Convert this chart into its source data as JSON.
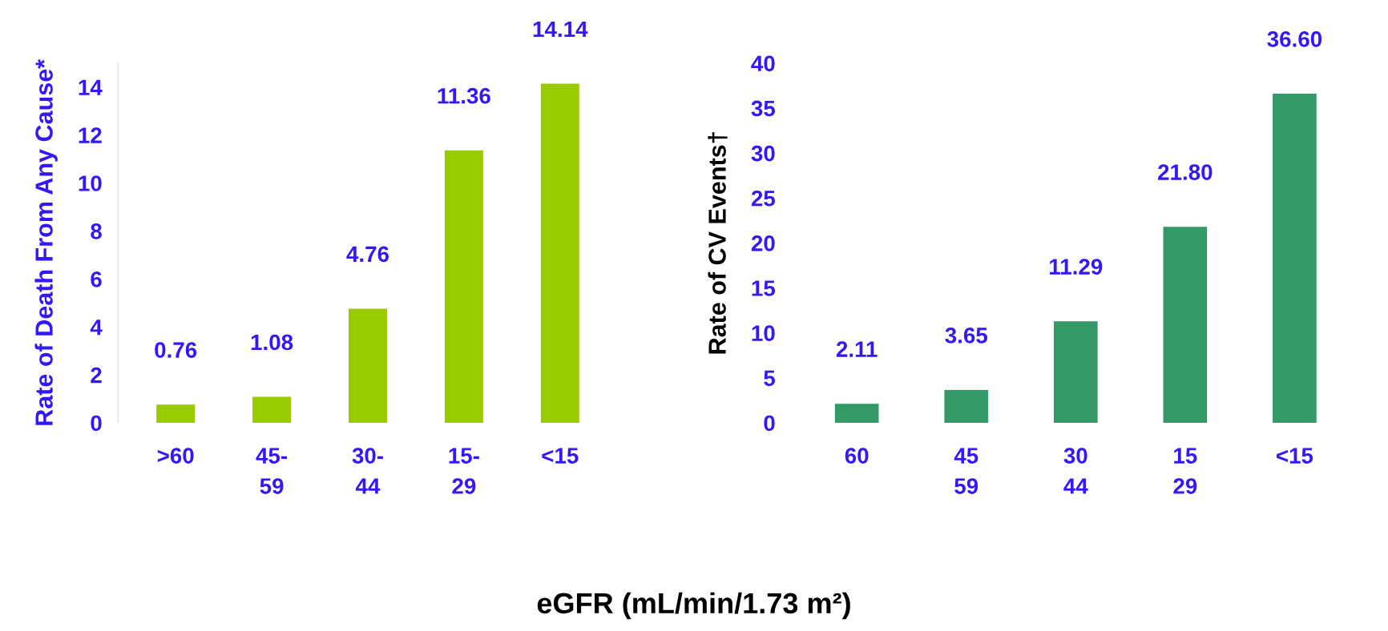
{
  "chart_data": [
    {
      "type": "bar",
      "xlabel": "eGFR (mL/min/1.73 m²)",
      "ylabel": "Rate of Death From Any Cause*",
      "categories": [
        ">60",
        "45-\n59",
        "30-\n44",
        "15-\n29",
        "<15"
      ],
      "series": [
        {
          "color": "#99cc00",
          "values": [
            0.76,
            1.08,
            4.76,
            11.36,
            14.14
          ]
        }
      ],
      "ylim": [
        0,
        15
      ],
      "yticks": [
        0,
        2,
        4,
        6,
        8,
        10,
        12,
        14
      ],
      "data_labels": true,
      "grid": false,
      "legend": false
    },
    {
      "type": "bar",
      "ylabel": "Rate of CV Events†",
      "categories": [
        "60",
        "45\n59",
        "30\n44",
        "15\n29",
        "<15"
      ],
      "series": [
        {
          "color": "#339966",
          "values": [
            2.11,
            3.65,
            11.29,
            21.8,
            36.6
          ]
        }
      ],
      "value_labels": [
        "2.11",
        "3.65",
        "11.29",
        "21.80",
        "36.60"
      ],
      "ylim": [
        0,
        40
      ],
      "yticks": [
        0,
        5,
        10,
        15,
        20,
        25,
        30,
        35,
        40
      ],
      "grid": false,
      "legend": false
    }
  ]
}
